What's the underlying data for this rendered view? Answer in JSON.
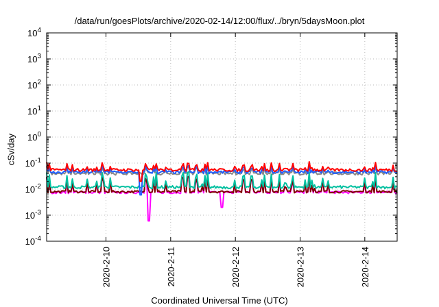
{
  "chart_data": {
    "type": "line",
    "title": "/data/run/goesPlots/archive/2020-02-14/12:00/flux/../bryn/5daysMoon.plot",
    "xlabel": "Coordinated Universal Time (UTC)",
    "ylabel": "cSv/day",
    "yscale": "log",
    "ylim": [
      0.0001,
      10000
    ],
    "xlim": [
      "2020-02-09 02:00",
      "2020-02-14 12:00"
    ],
    "grid": true,
    "x_ticks": [
      "2020-2-10",
      "2020-2-11",
      "2020-2-12",
      "2020-2-13",
      "2020-2-14"
    ],
    "y_ticks": [
      {
        "base": "10",
        "exp": "-4"
      },
      {
        "base": "10",
        "exp": "-3"
      },
      {
        "base": "10",
        "exp": "-2"
      },
      {
        "base": "10",
        "exp": "-1"
      },
      {
        "base": "10",
        "exp": "0"
      },
      {
        "base": "10",
        "exp": "1"
      },
      {
        "base": "10",
        "exp": "2"
      },
      {
        "base": "10",
        "exp": "3"
      },
      {
        "base": "10",
        "exp": "4"
      }
    ],
    "series": [
      {
        "color": "#ff0000",
        "baseline": 0.055,
        "spread": 0.25,
        "spike_up": 0.12,
        "dips": [
          {
            "x": "2020-02-10 13:00",
            "y": 0.02
          }
        ]
      },
      {
        "color": "#1f5fff",
        "baseline": 0.045,
        "spread": 0.25,
        "spike_up": 0.09,
        "dips": [
          {
            "x": "2020-02-10 13:00",
            "y": 0.006
          }
        ]
      },
      {
        "color": "#888888",
        "baseline": 0.04,
        "spread": 0.25,
        "spike_up": 0.08,
        "dips": []
      },
      {
        "color": "#00c0a0",
        "baseline": 0.012,
        "spread": 0.25,
        "spike_up": 0.06,
        "dips": []
      },
      {
        "color": "#800000",
        "baseline": 0.008,
        "spread": 0.2,
        "spike_up": 0.05,
        "dips": []
      },
      {
        "color": "#ff00ff",
        "baseline": 0.0075,
        "spread": 0.2,
        "spike_up": 0.05,
        "dips": [
          {
            "x": "2020-02-10 16:00",
            "y": 0.0006
          },
          {
            "x": "2020-02-11 19:00",
            "y": 0.002
          }
        ]
      }
    ]
  }
}
